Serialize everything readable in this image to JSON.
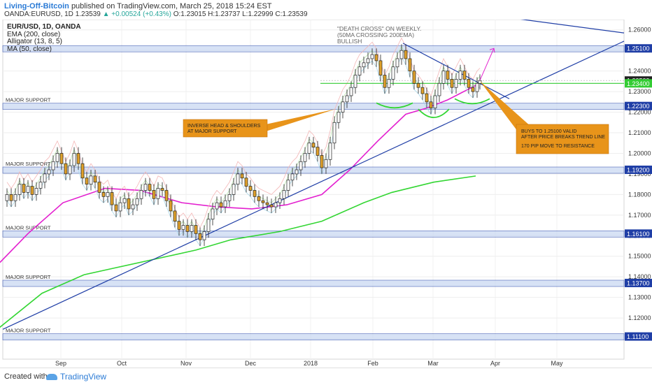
{
  "header": {
    "author": "Living-Off-Bitcoin",
    "published": "published on TradingView.com, March 25, 2018 15:24 EST",
    "symbol": "OANDA:EURUSD, 1D",
    "price": "1.23539",
    "change": "▲ +0.00524 (+0.43%)",
    "ohlc": "O:1.23015 H:1.23737 L:1.22999 C:1.23539"
  },
  "legend": {
    "title": "EUR/USD, 1D, OANDA",
    "ema": "EMA (200, close)",
    "alligator": "Alligator (13, 8, 5)",
    "ma": "MA (50, close)"
  },
  "footer": {
    "created": "Created with",
    "brand": "TradingView"
  },
  "chart_data": {
    "type": "candlestick",
    "x_ticks": [
      "Sep",
      "Oct",
      "Nov",
      "Dec",
      "2018",
      "Feb",
      "Mar",
      "Apr",
      "May"
    ],
    "y_ticks": [
      1.26,
      1.25,
      1.24,
      1.23,
      1.22,
      1.21,
      1.2,
      1.19,
      1.18,
      1.17,
      1.16,
      1.15,
      1.14,
      1.13,
      1.12,
      1.11
    ],
    "ylim": [
      1.1,
      1.265
    ],
    "price_labels": [
      {
        "text": "1.25100",
        "value": 1.251,
        "color": "#1f3ea6"
      },
      {
        "text": "1.23539",
        "value": 1.23539,
        "color": "#222222"
      },
      {
        "text": "1.23400",
        "value": 1.234,
        "color": "#33cc33"
      },
      {
        "text": "1.22300",
        "value": 1.223,
        "color": "#1f3ea6"
      },
      {
        "text": "1.19200",
        "value": 1.192,
        "color": "#1f3ea6"
      },
      {
        "text": "1.16100",
        "value": 1.161,
        "color": "#1f3ea6"
      },
      {
        "text": "1.13700",
        "value": 1.137,
        "color": "#1f3ea6"
      },
      {
        "text": "1.11100",
        "value": 1.111,
        "color": "#1f3ea6"
      }
    ],
    "support_zones": [
      {
        "value": 1.251,
        "label": ""
      },
      {
        "value": 1.223,
        "label": "MAJOR SUPPORT"
      },
      {
        "value": 1.192,
        "label": "MAJOR SUPPORT"
      },
      {
        "value": 1.161,
        "label": "MAJOR SUPPORT"
      },
      {
        "value": 1.137,
        "label": "MAJOR SUPPORT"
      },
      {
        "value": 1.111,
        "label": "MAJOR SUPPORT"
      }
    ],
    "annotations": {
      "death_cross": [
        "\"DEATH CROSS\" ON WEEKLY.",
        "(50MA CROSSING 200EMA)",
        "BULLISH"
      ],
      "head_shoulders": [
        "INVERSE HEAD & SHOULDERS",
        "AT MAJOR SUPPORT"
      ],
      "buys": [
        "BUYS TO 1.25100 VALID",
        "AFTER PRICE BREAKS TREND LINE",
        "170 PIP MOVE TO RESISTANCE"
      ]
    },
    "series_ema200": [
      [
        -2,
        1.115
      ],
      [
        60,
        1.132
      ],
      [
        120,
        1.141
      ],
      [
        160,
        1.144
      ],
      [
        240,
        1.15
      ],
      [
        280,
        1.153
      ],
      [
        330,
        1.158
      ],
      [
        400,
        1.162
      ],
      [
        460,
        1.167
      ],
      [
        520,
        1.176
      ],
      [
        560,
        1.181
      ],
      [
        620,
        1.186
      ],
      [
        680,
        1.189
      ]
    ],
    "series_ma50": [
      [
        0,
        1.147
      ],
      [
        40,
        1.161
      ],
      [
        90,
        1.176
      ],
      [
        150,
        1.183
      ],
      [
        200,
        1.182
      ],
      [
        260,
        1.176
      ],
      [
        310,
        1.174
      ],
      [
        360,
        1.173
      ],
      [
        410,
        1.175
      ],
      [
        460,
        1.18
      ],
      [
        500,
        1.192
      ],
      [
        540,
        1.206
      ],
      [
        580,
        1.219
      ],
      [
        610,
        1.222
      ],
      [
        640,
        1.226
      ],
      [
        680,
        1.233
      ]
    ],
    "candles": [
      [
        10,
        1.18
      ],
      [
        16,
        1.177
      ],
      [
        22,
        1.18
      ],
      [
        28,
        1.185
      ],
      [
        34,
        1.181
      ],
      [
        40,
        1.184
      ],
      [
        46,
        1.18
      ],
      [
        52,
        1.183
      ],
      [
        58,
        1.186
      ],
      [
        64,
        1.19
      ],
      [
        70,
        1.192
      ],
      [
        76,
        1.196
      ],
      [
        82,
        1.2
      ],
      [
        88,
        1.195
      ],
      [
        94,
        1.19
      ],
      [
        100,
        1.194
      ],
      [
        106,
        1.2
      ],
      [
        112,
        1.195
      ],
      [
        118,
        1.188
      ],
      [
        124,
        1.185
      ],
      [
        130,
        1.189
      ],
      [
        136,
        1.186
      ],
      [
        142,
        1.181
      ],
      [
        148,
        1.179
      ],
      [
        154,
        1.181
      ],
      [
        160,
        1.175
      ],
      [
        166,
        1.172
      ],
      [
        172,
        1.176
      ],
      [
        178,
        1.178
      ],
      [
        184,
        1.173
      ],
      [
        190,
        1.175
      ],
      [
        196,
        1.178
      ],
      [
        202,
        1.182
      ],
      [
        208,
        1.185
      ],
      [
        214,
        1.182
      ],
      [
        220,
        1.178
      ],
      [
        226,
        1.183
      ],
      [
        232,
        1.182
      ],
      [
        238,
        1.177
      ],
      [
        244,
        1.172
      ],
      [
        250,
        1.167
      ],
      [
        256,
        1.163
      ],
      [
        262,
        1.165
      ],
      [
        268,
        1.162
      ],
      [
        274,
        1.165
      ],
      [
        280,
        1.161
      ],
      [
        286,
        1.158
      ],
      [
        292,
        1.162
      ],
      [
        298,
        1.168
      ],
      [
        304,
        1.173
      ],
      [
        310,
        1.176
      ],
      [
        316,
        1.174
      ],
      [
        322,
        1.177
      ],
      [
        328,
        1.18
      ],
      [
        334,
        1.185
      ],
      [
        340,
        1.19
      ],
      [
        346,
        1.188
      ],
      [
        352,
        1.184
      ],
      [
        358,
        1.182
      ],
      [
        364,
        1.179
      ],
      [
        370,
        1.177
      ],
      [
        376,
        1.176
      ],
      [
        382,
        1.175
      ],
      [
        388,
        1.174
      ],
      [
        394,
        1.176
      ],
      [
        400,
        1.178
      ],
      [
        406,
        1.182
      ],
      [
        412,
        1.187
      ],
      [
        418,
        1.19
      ],
      [
        424,
        1.192
      ],
      [
        430,
        1.196
      ],
      [
        436,
        1.2
      ],
      [
        442,
        1.205
      ],
      [
        448,
        1.203
      ],
      [
        454,
        1.199
      ],
      [
        460,
        1.193
      ],
      [
        466,
        1.197
      ],
      [
        472,
        1.205
      ],
      [
        478,
        1.215
      ],
      [
        484,
        1.22
      ],
      [
        490,
        1.225
      ],
      [
        496,
        1.228
      ],
      [
        502,
        1.232
      ],
      [
        508,
        1.238
      ],
      [
        514,
        1.242
      ],
      [
        520,
        1.244
      ],
      [
        526,
        1.246
      ],
      [
        532,
        1.248
      ],
      [
        538,
        1.245
      ],
      [
        544,
        1.238
      ],
      [
        550,
        1.232
      ],
      [
        556,
        1.236
      ],
      [
        562,
        1.242
      ],
      [
        568,
        1.246
      ],
      [
        574,
        1.25
      ],
      [
        580,
        1.246
      ],
      [
        586,
        1.24
      ],
      [
        592,
        1.234
      ],
      [
        598,
        1.232
      ],
      [
        604,
        1.229
      ],
      [
        610,
        1.225
      ],
      [
        616,
        1.222
      ],
      [
        622,
        1.228
      ],
      [
        628,
        1.234
      ],
      [
        634,
        1.24
      ],
      [
        640,
        1.236
      ],
      [
        646,
        1.232
      ],
      [
        652,
        1.236
      ],
      [
        658,
        1.24
      ],
      [
        664,
        1.236
      ],
      [
        670,
        1.232
      ],
      [
        676,
        1.23
      ],
      [
        682,
        1.234
      ],
      [
        686,
        1.2354
      ]
    ]
  }
}
